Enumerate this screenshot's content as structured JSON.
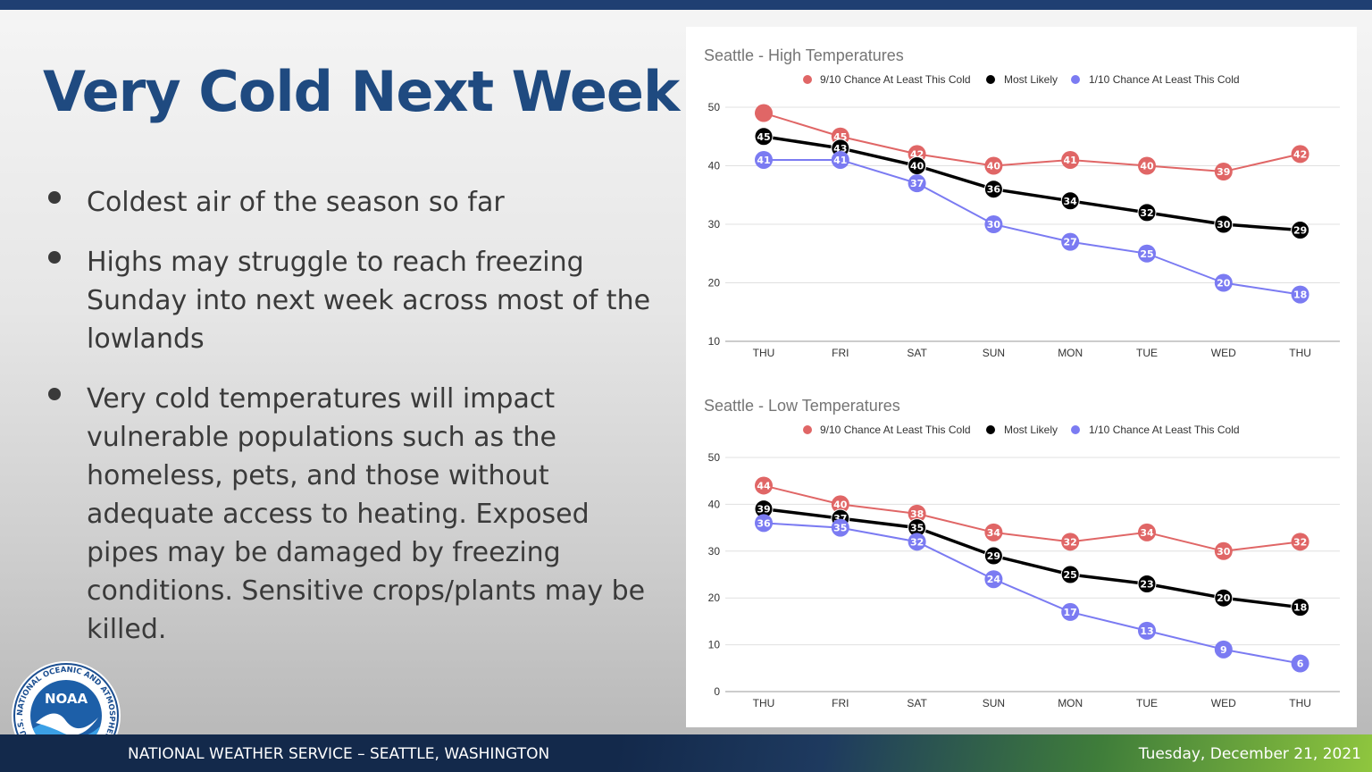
{
  "slide": {
    "title": "Very Cold Next Week",
    "bullets": [
      "Coldest air of the season so far",
      "Highs may struggle to reach freezing Sunday into next week across most of the lowlands",
      "Very cold temperatures will impact vulnerable populations such as the homeless, pets, and those without adequate access to heating. Exposed pipes may be damaged by freezing conditions. Sensitive crops/plants may be killed."
    ]
  },
  "footer": {
    "org": "NATIONAL WEATHER SERVICE – SEATTLE, WASHINGTON",
    "date": "Tuesday, December 21, 2021"
  },
  "logo": {
    "text": "NOAA",
    "ring_text": "NATIONAL OCEANIC AND ATMOSPHERIC ADMINISTRATION · U.S. DEPARTMENT OF COMMERCE",
    "icon": "noaa-logo"
  },
  "colors": {
    "title": "#1f4a80",
    "top_bar": "#1f3f72",
    "series_high": "#e06666",
    "series_likely": "#000000",
    "series_low": "#7b7bf2"
  },
  "chart_data": [
    {
      "type": "line",
      "title": "Seattle - High Temperatures",
      "categories": [
        "THU",
        "FRI",
        "SAT",
        "SUN",
        "MON",
        "TUE",
        "WED",
        "THU"
      ],
      "ylim": [
        10,
        50
      ],
      "yticks": [
        10,
        20,
        30,
        40,
        50
      ],
      "grid": true,
      "legend_position": "top",
      "series": [
        {
          "name": "9/10 Chance At Least This Cold",
          "color": "#e06666",
          "values": [
            49,
            45,
            42,
            40,
            41,
            40,
            39,
            42
          ],
          "labels": [
            null,
            "45",
            "42",
            "40",
            "41",
            "40",
            "39",
            "42"
          ]
        },
        {
          "name": "Most Likely",
          "color": "#000000",
          "values": [
            45,
            43,
            40,
            36,
            34,
            32,
            30,
            29
          ],
          "labels": [
            "45",
            "43",
            "40",
            "36",
            "34",
            "32",
            "30",
            "29"
          ]
        },
        {
          "name": "1/10 Chance At Least This Cold",
          "color": "#7b7bf2",
          "values": [
            41,
            41,
            37,
            30,
            27,
            25,
            20,
            18
          ],
          "labels": [
            "41",
            "41",
            "37",
            "30",
            "27",
            "25",
            "20",
            "18"
          ]
        }
      ]
    },
    {
      "type": "line",
      "title": "Seattle - Low Temperatures",
      "categories": [
        "THU",
        "FRI",
        "SAT",
        "SUN",
        "MON",
        "TUE",
        "WED",
        "THU"
      ],
      "ylim": [
        0,
        50
      ],
      "yticks": [
        0,
        10,
        20,
        30,
        40,
        50
      ],
      "grid": true,
      "legend_position": "top",
      "series": [
        {
          "name": "9/10 Chance At Least This Cold",
          "color": "#e06666",
          "values": [
            44,
            40,
            38,
            34,
            32,
            34,
            30,
            32
          ],
          "labels": [
            "44",
            "40",
            "38",
            "34",
            "32",
            "34",
            "30",
            "32"
          ]
        },
        {
          "name": "Most Likely",
          "color": "#000000",
          "values": [
            39,
            37,
            35,
            29,
            25,
            23,
            20,
            18
          ],
          "labels": [
            "39",
            "37",
            "35",
            "29",
            "25",
            "23",
            "20",
            "18"
          ]
        },
        {
          "name": "1/10 Chance At Least This Cold",
          "color": "#7b7bf2",
          "values": [
            36,
            35,
            32,
            24,
            17,
            13,
            9,
            6
          ],
          "labels": [
            "36",
            "35",
            "32",
            "24",
            "17",
            "13",
            "9",
            "6"
          ]
        }
      ]
    }
  ]
}
